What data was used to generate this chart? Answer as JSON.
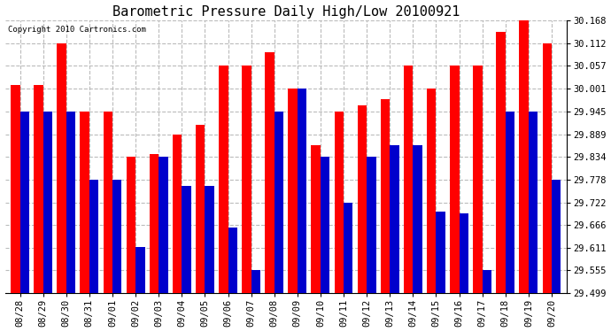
{
  "title": "Barometric Pressure Daily High/Low 20100921",
  "copyright": "Copyright 2010 Cartronics.com",
  "categories": [
    "08/28",
    "08/29",
    "08/30",
    "08/31",
    "09/01",
    "09/02",
    "09/03",
    "09/04",
    "09/05",
    "09/06",
    "09/07",
    "09/08",
    "09/09",
    "09/10",
    "09/11",
    "09/12",
    "09/13",
    "09/14",
    "09/15",
    "09/16",
    "09/17",
    "09/18",
    "09/19",
    "09/20"
  ],
  "highs": [
    30.01,
    30.01,
    30.112,
    29.945,
    29.945,
    29.834,
    29.84,
    29.889,
    29.912,
    30.057,
    30.057,
    30.09,
    30.001,
    29.862,
    29.945,
    29.96,
    29.975,
    30.057,
    30.001,
    30.057,
    30.057,
    30.14,
    30.168,
    30.112
  ],
  "lows": [
    29.945,
    29.945,
    29.945,
    29.778,
    29.778,
    29.612,
    29.834,
    29.762,
    29.762,
    29.66,
    29.555,
    29.945,
    30.001,
    29.834,
    29.722,
    29.834,
    29.862,
    29.862,
    29.7,
    29.696,
    29.555,
    29.945,
    29.945,
    29.778
  ],
  "high_color": "#ff0000",
  "low_color": "#0000cc",
  "background_color": "#ffffff",
  "plot_bg_color": "#ffffff",
  "grid_color": "#bbbbbb",
  "ylim_min": 29.499,
  "ylim_max": 30.168,
  "yticks": [
    29.499,
    29.555,
    29.611,
    29.666,
    29.722,
    29.778,
    29.834,
    29.889,
    29.945,
    30.001,
    30.057,
    30.112,
    30.168
  ],
  "bar_width": 0.4,
  "title_fontsize": 11,
  "tick_fontsize": 7.5,
  "copyright_fontsize": 6.5
}
